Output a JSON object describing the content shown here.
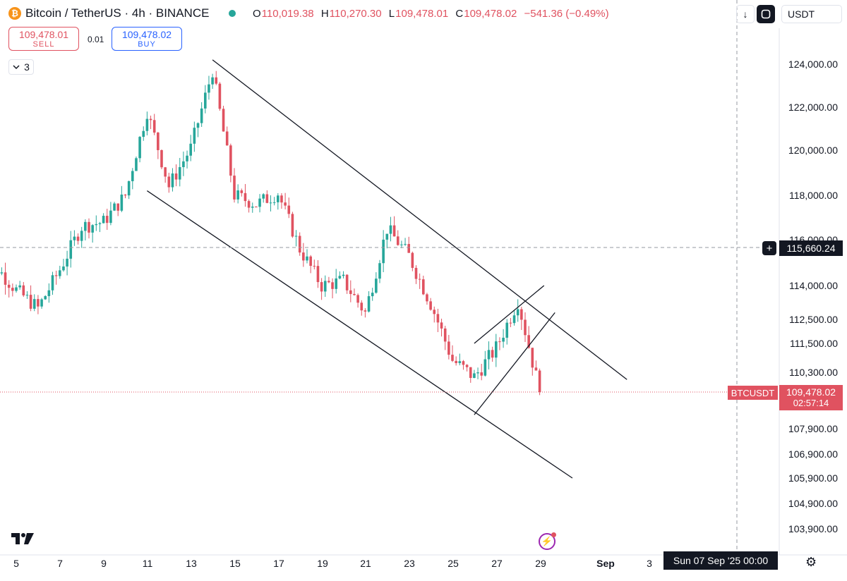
{
  "header": {
    "symbol": "Bitcoin / TetherUS · 4h · BINANCE",
    "coin_glyph": "₿",
    "open_label": "O",
    "open": "110,019.38",
    "high_label": "H",
    "high": "110,270.30",
    "low_label": "L",
    "low": "109,478.01",
    "close_label": "C",
    "close": "109,478.02",
    "change": "−541.36 (−0.49%)"
  },
  "trade": {
    "sell_price": "109,478.01",
    "sell_label": "SELL",
    "spread": "0.01",
    "buy_price": "109,478.02",
    "buy_label": "BUY"
  },
  "indicators": {
    "count": "3"
  },
  "toolbar": {
    "down_icon": "↓",
    "currency": "USDT"
  },
  "crosshair": {
    "price": "115,660.24",
    "date": "Sun 07 Sep '25   00:00"
  },
  "last_price": {
    "symbol_tag": "BTCUSDT",
    "price": "109,478.02",
    "countdown": "02:57:14"
  },
  "chart_data": {
    "type": "candlestick",
    "title": "Bitcoin / TetherUS · 4h · BINANCE",
    "y_axis_labels": [
      "124,000.00",
      "122,000.00",
      "120,000.00",
      "118,000.00",
      "116,000.00",
      "114,000.00",
      "112,500.00",
      "111,500.00",
      "110,300.00",
      "107,900.00",
      "106,900.00",
      "105,900.00",
      "104,900.00",
      "103,900.00"
    ],
    "x_axis_labels": [
      "5",
      "7",
      "9",
      "11",
      "13",
      "15",
      "17",
      "19",
      "21",
      "23",
      "25",
      "27",
      "29",
      "Sep",
      "3"
    ],
    "last_price": 109478.02,
    "crosshair_price": 115660.24,
    "path_anchors": [
      {
        "date": "Aug 4",
        "price": 114900
      },
      {
        "date": "Aug 5",
        "price": 113800
      },
      {
        "date": "Aug 6",
        "price": 113000
      },
      {
        "date": "Aug 7",
        "price": 114700
      },
      {
        "date": "Aug 8",
        "price": 116600
      },
      {
        "date": "Aug 9",
        "price": 116800
      },
      {
        "date": "Aug 10",
        "price": 118000
      },
      {
        "date": "Aug 11",
        "price": 121800
      },
      {
        "date": "Aug 12",
        "price": 118400
      },
      {
        "date": "Aug 13",
        "price": 120100
      },
      {
        "date": "Aug 14",
        "price": 123700
      },
      {
        "date": "Aug 15",
        "price": 118000
      },
      {
        "date": "Aug 16",
        "price": 117600
      },
      {
        "date": "Aug 17",
        "price": 118100
      },
      {
        "date": "Aug 18",
        "price": 115600
      },
      {
        "date": "Aug 19",
        "price": 114000
      },
      {
        "date": "Aug 20",
        "price": 114200
      },
      {
        "date": "Aug 21",
        "price": 112800
      },
      {
        "date": "Aug 22",
        "price": 116500
      },
      {
        "date": "Aug 23",
        "price": 115300
      },
      {
        "date": "Aug 24",
        "price": 113200
      },
      {
        "date": "Aug 25",
        "price": 110800
      },
      {
        "date": "Aug 26",
        "price": 110100
      },
      {
        "date": "Aug 27",
        "price": 111300
      },
      {
        "date": "Aug 28",
        "price": 113300
      },
      {
        "date": "Aug 29",
        "price": 109478
      }
    ],
    "trendlines": [
      {
        "name": "descending-channel-upper",
        "from": {
          "date": "Aug 14",
          "price": 124200
        },
        "to": {
          "date": "Sep 2",
          "price": 110000
        }
      },
      {
        "name": "descending-channel-lower",
        "from": {
          "date": "Aug 11",
          "price": 118200
        },
        "to": {
          "date": "Aug 30.5",
          "price": 105900
        }
      },
      {
        "name": "rising-wedge-upper",
        "from": {
          "date": "Aug 26",
          "price": 111500
        },
        "to": {
          "date": "Aug 29.2",
          "price": 114000
        }
      },
      {
        "name": "rising-wedge-lower",
        "from": {
          "date": "Aug 26",
          "price": 108500
        },
        "to": {
          "date": "Aug 29.7",
          "price": 112800
        }
      }
    ]
  }
}
